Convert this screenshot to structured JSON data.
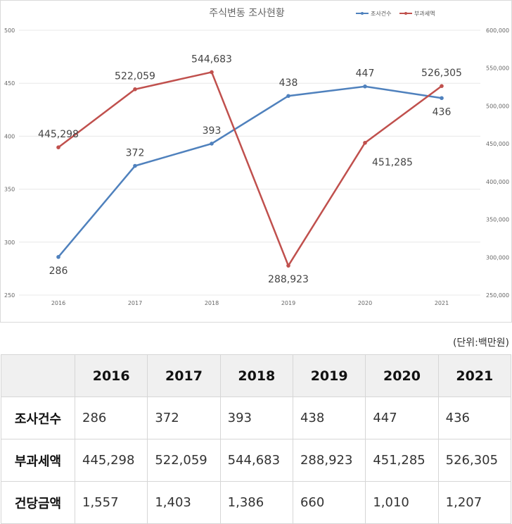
{
  "chart_data": {
    "type": "line",
    "title": "주식변동 조사현황",
    "categories": [
      "2016",
      "2017",
      "2018",
      "2019",
      "2020",
      "2021"
    ],
    "y_left": {
      "ylim": [
        250,
        500
      ],
      "ticks": [
        "250",
        "300",
        "350",
        "400",
        "450",
        "500"
      ]
    },
    "y_right": {
      "ylim": [
        250000,
        600000
      ],
      "ticks": [
        "250,000",
        "300,000",
        "350,000",
        "400,000",
        "450,000",
        "500,000",
        "550,000",
        "600,000"
      ]
    },
    "grid": true,
    "legend_position": "top-right",
    "series": [
      {
        "name": "조사건수",
        "axis": "left",
        "color": "#4f81bd",
        "values": [
          286,
          372,
          393,
          438,
          447,
          436
        ],
        "labels": [
          "286",
          "372",
          "393",
          "438",
          "447",
          "436"
        ],
        "label_pos": [
          "below",
          "above",
          "above",
          "above",
          "above",
          "below"
        ]
      },
      {
        "name": "부과세액",
        "axis": "right",
        "color": "#c0504d",
        "values": [
          445298,
          522059,
          544683,
          288923,
          451285,
          526305
        ],
        "labels": [
          "445,298",
          "522,059",
          "544,683",
          "288,923",
          "451,285",
          "526,305"
        ],
        "label_pos": [
          "above",
          "above",
          "above",
          "below",
          "right",
          "above"
        ]
      }
    ]
  },
  "unit_note": "(단위:백만원)",
  "table": {
    "headers": [
      "",
      "2016",
      "2017",
      "2018",
      "2019",
      "2020",
      "2021"
    ],
    "rows": [
      {
        "label": "조사건수",
        "values": [
          "286",
          "372",
          "393",
          "438",
          "447",
          "436"
        ]
      },
      {
        "label": "부과세액",
        "values": [
          "445,298",
          "522,059",
          "544,683",
          "288,923",
          "451,285",
          "526,305"
        ]
      },
      {
        "label": "건당금액",
        "values": [
          "1,557",
          "1,403",
          "1,386",
          "660",
          "1,010",
          "1,207"
        ]
      }
    ]
  }
}
